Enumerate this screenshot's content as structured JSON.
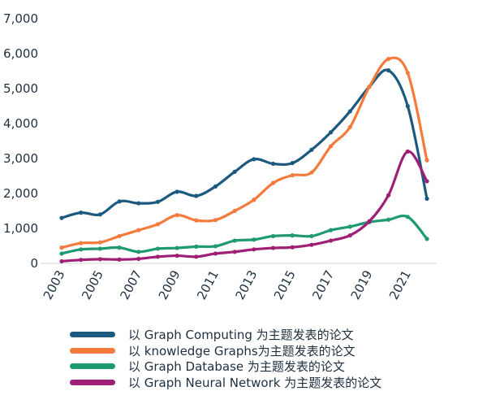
{
  "chart_data": {
    "type": "line",
    "x": [
      2003,
      2004,
      2005,
      2006,
      2007,
      2008,
      2009,
      2010,
      2011,
      2012,
      2013,
      2014,
      2015,
      2016,
      2017,
      2018,
      2019,
      2020,
      2021,
      2022
    ],
    "x_tick_labels": [
      "2003",
      "2005",
      "2007",
      "2009",
      "2011",
      "2013",
      "2015",
      "2017",
      "2019",
      "2021"
    ],
    "y_tick_labels": [
      "0",
      "1,000",
      "2,000",
      "3,000",
      "4,000",
      "5,000",
      "6,000",
      "7,000"
    ],
    "ylim": [
      0,
      7000
    ],
    "grid": false,
    "legend_position": "bottom",
    "series": [
      {
        "name": "以 Graph Computing 为主题发表的论文",
        "color": "#1b5a7e",
        "values": [
          1300,
          1450,
          1400,
          1770,
          1720,
          1760,
          2050,
          1930,
          2200,
          2620,
          2980,
          2850,
          2870,
          3250,
          3750,
          4350,
          5050,
          5520,
          4500,
          1850
        ]
      },
      {
        "name": "以 knowledge Graphs为主题发表的论文",
        "color": "#f47b3c",
        "values": [
          450,
          580,
          600,
          780,
          950,
          1120,
          1380,
          1230,
          1240,
          1500,
          1820,
          2300,
          2520,
          2600,
          3350,
          3900,
          5050,
          5850,
          5450,
          2950
        ]
      },
      {
        "name": "以 Graph Database 为主题发表的论文",
        "color": "#1e9a72",
        "values": [
          280,
          400,
          420,
          450,
          330,
          420,
          440,
          480,
          490,
          650,
          680,
          780,
          800,
          780,
          950,
          1050,
          1180,
          1250,
          1330,
          700
        ]
      },
      {
        "name": "以 Graph Neural Network 为主题发表的论文",
        "color": "#9e1f75",
        "values": [
          60,
          100,
          120,
          110,
          130,
          190,
          220,
          190,
          280,
          330,
          400,
          440,
          460,
          530,
          650,
          800,
          1200,
          1950,
          3200,
          2350
        ]
      }
    ]
  }
}
